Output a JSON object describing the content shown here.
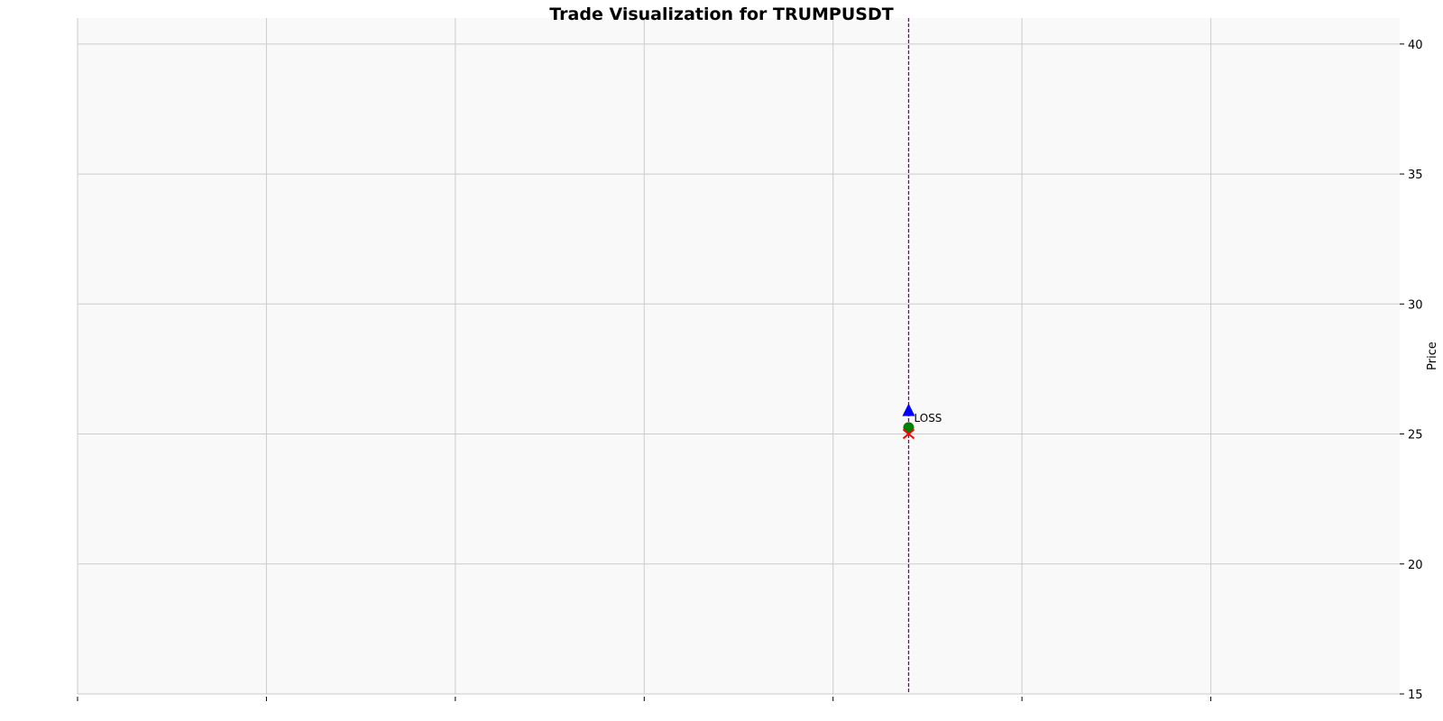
{
  "chart_data": {
    "type": "scatter",
    "title": "Trade Visualization for TRUMPUSDT",
    "xlabel": "",
    "ylabel": "Price",
    "ylim": [
      15,
      41
    ],
    "yticks": [
      15,
      20,
      25,
      30,
      35,
      40
    ],
    "xlim": [
      0,
      7
    ],
    "xticks": [
      0,
      1,
      2,
      3,
      4,
      5,
      6
    ],
    "grid": true,
    "y_axis_side": "right",
    "trade_x": 4.4,
    "markers": [
      {
        "kind": "entry",
        "shape": "triangle-up",
        "color": "#0000ff",
        "y": 25.9
      },
      {
        "kind": "exit",
        "shape": "circle",
        "color": "#008000",
        "y": 25.25
      },
      {
        "kind": "stop",
        "shape": "x",
        "color": "#ff0000",
        "y": 25.0
      }
    ],
    "vertical_line": {
      "color": "#800080",
      "style": "dashed"
    },
    "annotation": {
      "text": "LOSS",
      "y": 25.6
    },
    "colors": {
      "plot_bg": "#f9f9f9",
      "grid": "#cccccc"
    }
  }
}
